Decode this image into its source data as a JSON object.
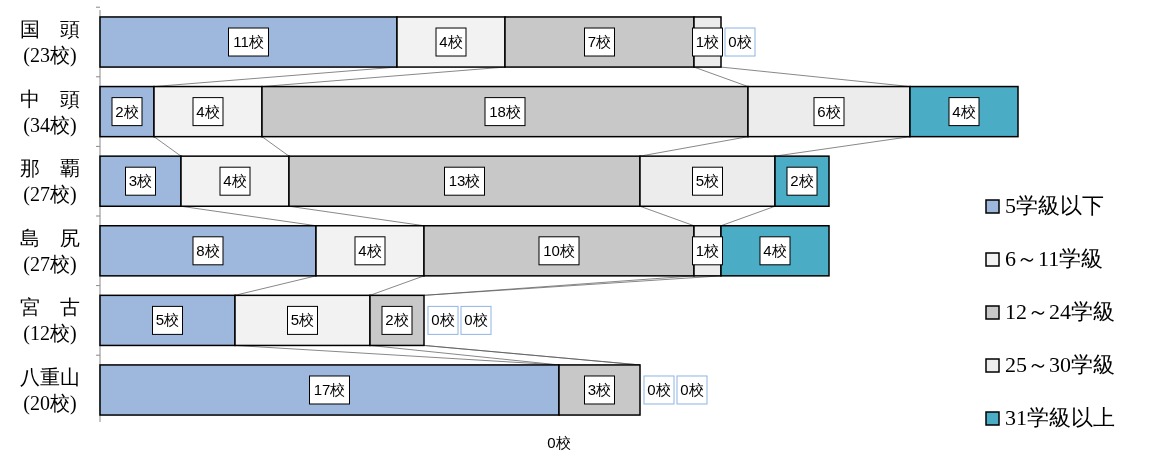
{
  "chart_data": {
    "type": "bar",
    "orientation": "horizontal",
    "stacked": true,
    "categories": [
      "国　頭\n(23校)",
      "中　頭\n(34校)",
      "那　覇\n(27校)",
      "島　尻\n(27校)",
      "宮　古\n(12校)",
      "八重山\n(20校)"
    ],
    "xlim": [
      0,
      34
    ],
    "series": [
      {
        "name": "5学級以下",
        "color": "#9db8dc",
        "values": [
          11,
          2,
          3,
          8,
          5,
          17
        ],
        "value_labels": [
          "11校",
          "2校",
          "3校",
          "8校",
          "5校",
          "17校"
        ]
      },
      {
        "name": "6～11学級",
        "color": "#f2f2f2",
        "values": [
          4,
          4,
          4,
          4,
          5,
          0
        ],
        "value_labels": [
          "4校",
          "4校",
          "4校",
          "4校",
          "5校",
          null
        ]
      },
      {
        "name": "12～24学級",
        "color": "#c8c8c8",
        "values": [
          7,
          18,
          13,
          10,
          2,
          3
        ],
        "value_labels": [
          "7校",
          "18校",
          "13校",
          "10校",
          "2校",
          "3校"
        ]
      },
      {
        "name": "25～30学級",
        "color": "#ececec",
        "values": [
          1,
          6,
          5,
          1,
          0,
          0
        ],
        "value_labels": [
          "1校",
          "6校",
          "5校",
          "1校",
          "0校",
          "0校"
        ]
      },
      {
        "name": "31学級以上",
        "color": "#4bacc6",
        "values": [
          0,
          4,
          2,
          4,
          0,
          0
        ],
        "value_labels": [
          "0校",
          "4校",
          "2校",
          "4校",
          "0校",
          "0校"
        ]
      }
    ],
    "legend": "right",
    "annotations": [
      "0校"
    ]
  }
}
